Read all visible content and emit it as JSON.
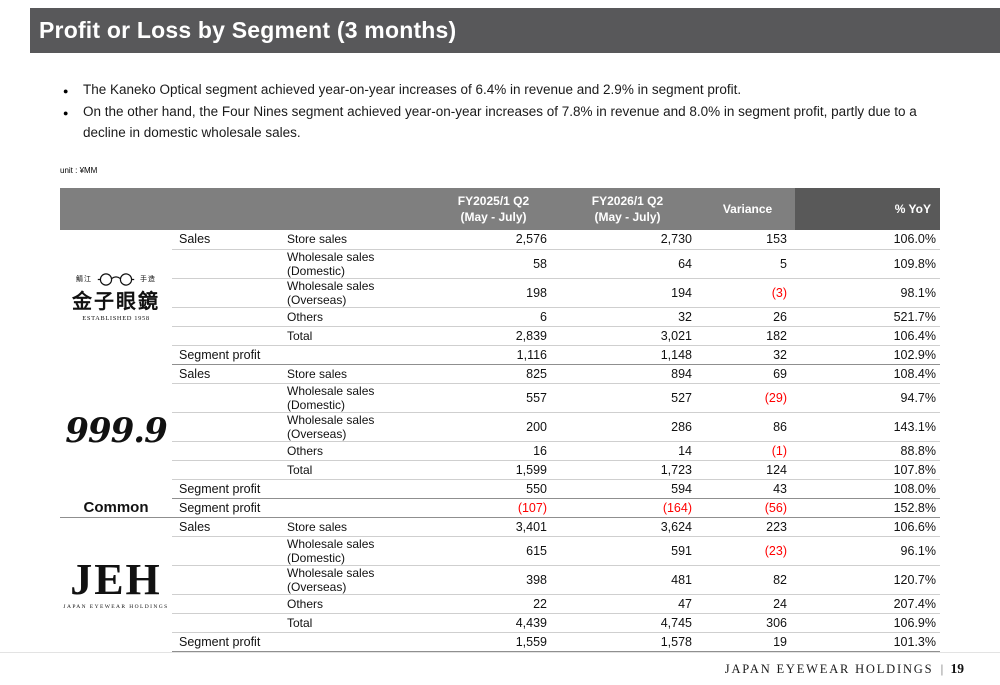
{
  "slide": {
    "title": "Profit or Loss by Segment (3 months)",
    "bullets": [
      "The Kaneko Optical segment achieved year-on-year increases of 6.4% in revenue and 2.9% in segment profit.",
      "On the other hand, the Four Nines segment achieved year-on-year increases of 7.8% in revenue and 8.0% in segment profit, partly due to a decline in domestic wholesale sales."
    ],
    "unit_label": "unit : ¥MM"
  },
  "table": {
    "col_headers": [
      "FY2025/1 Q2\n(May - July)",
      "FY2026/1 Q2\n(May - July)",
      "Variance",
      "% YoY"
    ],
    "segments": [
      {
        "logo": "kaneko",
        "rows": [
          {
            "category": "Sales",
            "item": "Store sales",
            "values": [
              "2,576",
              "2,730",
              "153",
              "106.0%"
            ]
          },
          {
            "category": "",
            "item": "Wholesale sales (Domestic)",
            "values": [
              "58",
              "64",
              "5",
              "109.8%"
            ]
          },
          {
            "category": "",
            "item": "Wholesale sales  (Overseas)",
            "values": [
              "198",
              "194",
              "(3)",
              "98.1%"
            ]
          },
          {
            "category": "",
            "item": "Others",
            "values": [
              "6",
              "32",
              "26",
              "521.7%"
            ]
          },
          {
            "category": "",
            "item": "Total",
            "values": [
              "2,839",
              "3,021",
              "182",
              "106.4%"
            ]
          },
          {
            "category": "Segment profit",
            "item": "",
            "values": [
              "1,116",
              "1,148",
              "32",
              "102.9%"
            ]
          }
        ]
      },
      {
        "logo": "four_nines",
        "rows": [
          {
            "category": "Sales",
            "item": "Store sales",
            "values": [
              "825",
              "894",
              "69",
              "108.4%"
            ]
          },
          {
            "category": "",
            "item": "Wholesale sales (Domestic)",
            "values": [
              "557",
              "527",
              "(29)",
              "94.7%"
            ]
          },
          {
            "category": "",
            "item": "Wholesale sales  (Overseas)",
            "values": [
              "200",
              "286",
              "86",
              "143.1%"
            ]
          },
          {
            "category": "",
            "item": "Others",
            "values": [
              "16",
              "14",
              "(1)",
              "88.8%"
            ]
          },
          {
            "category": "",
            "item": "Total",
            "values": [
              "1,599",
              "1,723",
              "124",
              "107.8%"
            ]
          },
          {
            "category": "Segment profit",
            "item": "",
            "values": [
              "550",
              "594",
              "43",
              "108.0%"
            ]
          }
        ]
      },
      {
        "logo": "common",
        "rows": [
          {
            "category": "Segment profit",
            "item": "",
            "values": [
              "(107)",
              "(164)",
              "(56)",
              "152.8%"
            ]
          }
        ]
      },
      {
        "logo": "jeh",
        "rows": [
          {
            "category": "Sales",
            "item": "Store sales",
            "values": [
              "3,401",
              "3,624",
              "223",
              "106.6%"
            ]
          },
          {
            "category": "",
            "item": "Wholesale sales (Domestic)",
            "values": [
              "615",
              "591",
              "(23)",
              "96.1%"
            ]
          },
          {
            "category": "",
            "item": "Wholesale sales  (Overseas)",
            "values": [
              "398",
              "481",
              "82",
              "120.7%"
            ]
          },
          {
            "category": "",
            "item": "Others",
            "values": [
              "22",
              "47",
              "24",
              "207.4%"
            ]
          },
          {
            "category": "",
            "item": "Total",
            "values": [
              "4,439",
              "4,745",
              "306",
              "106.9%"
            ]
          },
          {
            "category": "Segment profit",
            "item": "",
            "values": [
              "1,559",
              "1,578",
              "19",
              "101.3%"
            ]
          }
        ]
      }
    ]
  },
  "logos": {
    "kaneko": {
      "top_left": "鯖江",
      "top_right": "手造",
      "main": "金子眼鏡",
      "sub": "ESTABLISHED 1958"
    },
    "four_nines": {
      "text": "999.9"
    },
    "common": {
      "text": "Common"
    },
    "jeh": {
      "text": "JEH",
      "sub": "JAPAN EYEWEAR HOLDINGS"
    }
  },
  "footer": {
    "company": "JAPAN EYEWEAR HOLDINGS",
    "separator": "|",
    "page": "19"
  },
  "colors": {
    "title_bar": "#58585a",
    "header_bg": "#7f7f7f",
    "header_dark_bg": "#595959",
    "negative": "#ff0000"
  }
}
